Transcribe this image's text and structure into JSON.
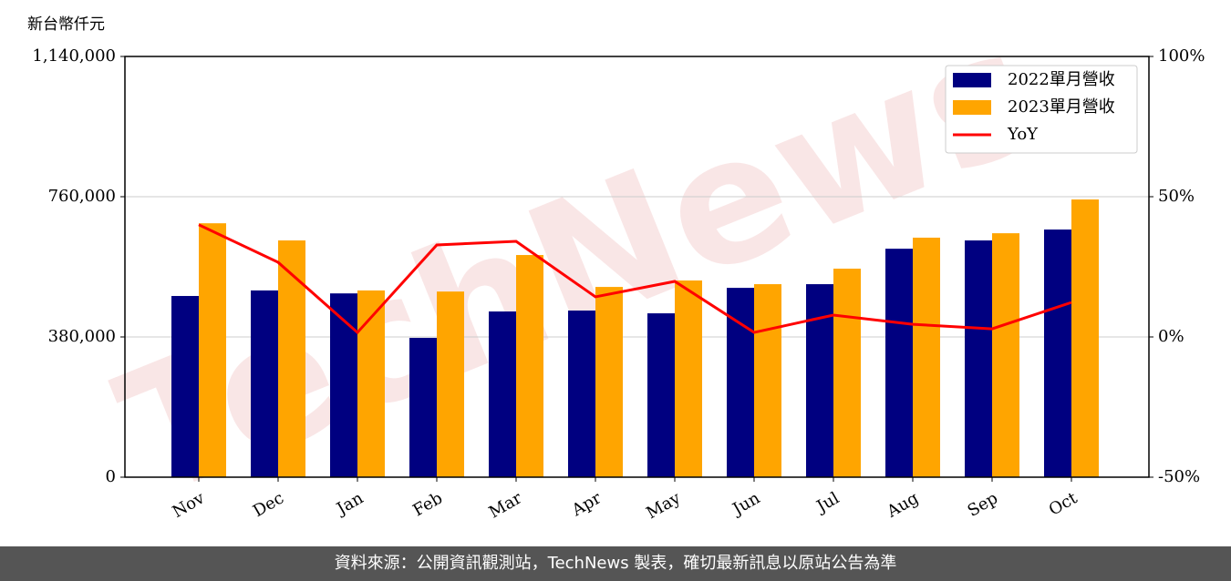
{
  "chart_data": {
    "type": "bar_line",
    "y_label": "新台幣仟元",
    "watermark": "TechNews",
    "footer": "資料來源：公開資訊觀測站，TechNews 製表，確切最新訊息以原站公告為準",
    "categories": [
      "Nov",
      "Dec",
      "Jan",
      "Feb",
      "Mar",
      "Apr",
      "May",
      "Jun",
      "Jul",
      "Aug",
      "Sep",
      "Oct"
    ],
    "series": [
      {
        "name": "2022單月營收",
        "color": "#000080",
        "type": "bar",
        "values": [
          491000,
          506000,
          498000,
          377500,
          449000,
          451500,
          444000,
          513000,
          523000,
          619000,
          641500,
          671000
        ]
      },
      {
        "name": "2023單月營收",
        "color": "#ffa500",
        "type": "bar",
        "values": [
          688000,
          641500,
          506000,
          503000,
          602000,
          515500,
          533000,
          523000,
          565000,
          649000,
          661000,
          752500
        ]
      },
      {
        "name": "YoY",
        "color": "#ff0000",
        "type": "line",
        "axis": "y2",
        "values": [
          40,
          26.6,
          1.6,
          32.8,
          34.1,
          14.3,
          19.8,
          1.6,
          7.8,
          4.5,
          2.9,
          12.3
        ]
      }
    ],
    "ylim": [
      0,
      1140000
    ],
    "yticks": [
      {
        "value": 0,
        "label": "0"
      },
      {
        "value": 380000,
        "label": "380,000"
      },
      {
        "value": 760000,
        "label": "760,000"
      },
      {
        "value": 1140000,
        "label": "1,140,000"
      }
    ],
    "y2lim": [
      -50,
      100
    ],
    "y2ticks": [
      {
        "value": -50,
        "label": "-50%"
      },
      {
        "value": 0,
        "label": "0%"
      },
      {
        "value": 50,
        "label": "50%"
      },
      {
        "value": 100,
        "label": "100%"
      }
    ],
    "grid": true,
    "legend": "upper right"
  }
}
